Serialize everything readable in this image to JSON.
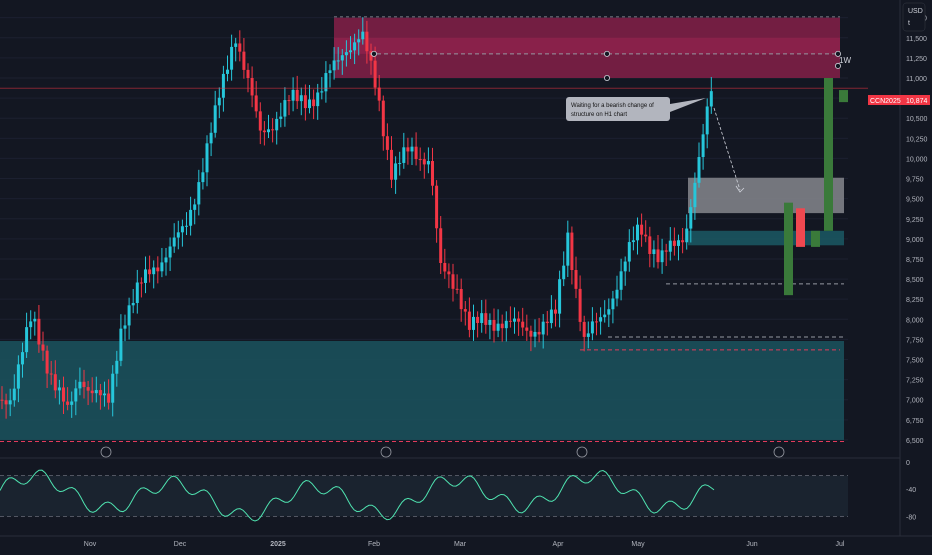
{
  "header": {
    "currency": "USD",
    "unit": "t"
  },
  "price_label": {
    "symbol": "CCN2025",
    "value": "10,874"
  },
  "annotation": {
    "text_line1": "Waiting for a bearish change of",
    "text_line2": "structure on H1 chart"
  },
  "timeframe_label": "1W",
  "colors": {
    "background": "#131722",
    "up": "#26c6da",
    "down": "#f23645",
    "supply_zone": "#7c1f45",
    "demand_zone": "#1a4f5a",
    "projection_box": "#7d7f86",
    "rsi_line": "#4fe3b0",
    "dashed_red": "#e23a5b",
    "proj_up": "#3a7a3a",
    "proj_down": "#f04850"
  },
  "chart_data": [
    {
      "type": "candlestick",
      "title": "",
      "y_axis": {
        "ticks": [
          "11,750",
          "11,500",
          "11,250",
          "11,000",
          "10,750",
          "10,500",
          "10,250",
          "10,000",
          "9,750",
          "9,500",
          "9,250",
          "9,000",
          "8,750",
          "8,500",
          "8,250",
          "8,000",
          "7,750",
          "7,500",
          "7,250",
          "7,000",
          "6,750",
          "6,500"
        ],
        "range": [
          6350,
          11920
        ]
      },
      "x_axis": {
        "ticks": [
          "Nov",
          "Dec",
          "2025",
          "Feb",
          "Mar",
          "Apr",
          "May",
          "Jun",
          "Jul"
        ]
      },
      "last_price": 10874,
      "zones": [
        {
          "name": "supply",
          "from": 11000,
          "to": 11750
        },
        {
          "name": "demand",
          "from": 6500,
          "to": 7730
        },
        {
          "name": "target-box",
          "from": 9320,
          "to": 9760
        },
        {
          "name": "demand-small",
          "from": 8920,
          "to": 9100
        }
      ],
      "levels": [
        11300,
        8440,
        7780,
        7620,
        6480
      ],
      "event_markers": [
        "Nov",
        "Feb",
        "Apr",
        "Jun"
      ]
    },
    {
      "type": "line",
      "title": "",
      "y_axis": {
        "ticks": [
          "0",
          "-40",
          "-80"
        ],
        "range": [
          -100,
          0
        ]
      },
      "bands": [
        -20,
        -80
      ]
    }
  ]
}
